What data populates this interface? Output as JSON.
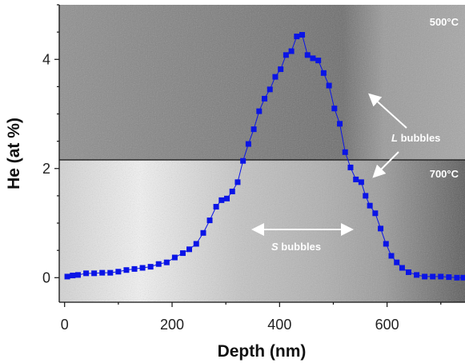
{
  "chart_data": {
    "type": "scatter",
    "xlabel": "Depth (nm)",
    "ylabel": "He (at %)",
    "xlim": [
      -10,
      745
    ],
    "ylim": [
      -0.45,
      5.0
    ],
    "xticks": [
      0,
      200,
      400,
      600
    ],
    "yticks": [
      0,
      2,
      4
    ],
    "marker_color": "#0a14e6",
    "series": [
      {
        "x": [
          5,
          15,
          25,
          40,
          55,
          70,
          85,
          100,
          115,
          130,
          145,
          160,
          175,
          190,
          205,
          220,
          232,
          245,
          258,
          270,
          282,
          292,
          302,
          312,
          322,
          332,
          342,
          352,
          362,
          372,
          382,
          392,
          402,
          412,
          422,
          432,
          442,
          452,
          462,
          472,
          482,
          492,
          502,
          512,
          522,
          532,
          542,
          552,
          560,
          568,
          578,
          588,
          598,
          608,
          618,
          628,
          640,
          655,
          670,
          685,
          700,
          715,
          730,
          742
        ],
        "y": [
          0.02,
          0.04,
          0.05,
          0.08,
          0.08,
          0.09,
          0.09,
          0.11,
          0.14,
          0.16,
          0.18,
          0.2,
          0.25,
          0.28,
          0.37,
          0.45,
          0.52,
          0.62,
          0.82,
          1.05,
          1.3,
          1.42,
          1.45,
          1.58,
          1.75,
          2.14,
          2.45,
          2.72,
          3.05,
          3.28,
          3.45,
          3.68,
          3.82,
          4.08,
          4.15,
          4.42,
          4.45,
          4.08,
          4.02,
          3.98,
          3.75,
          3.52,
          3.1,
          2.82,
          2.3,
          2.02,
          1.8,
          1.75,
          1.5,
          1.32,
          1.18,
          0.9,
          0.62,
          0.4,
          0.28,
          0.18,
          0.1,
          0.05,
          0.02,
          0.02,
          0.02,
          0.01,
          0.0,
          0.0
        ]
      }
    ]
  },
  "overlays": {
    "label_500": "500°C",
    "label_700": "700°C",
    "l_bubbles_prefix": "L",
    "l_bubbles_suffix": " bubbles",
    "s_bubbles_prefix": "S",
    "s_bubbles_suffix": " bubbles"
  },
  "colors": {
    "top_image_base": "#8c8c8c",
    "bottom_image_base": "#c8c8c8",
    "arrow": "#ffffff"
  }
}
